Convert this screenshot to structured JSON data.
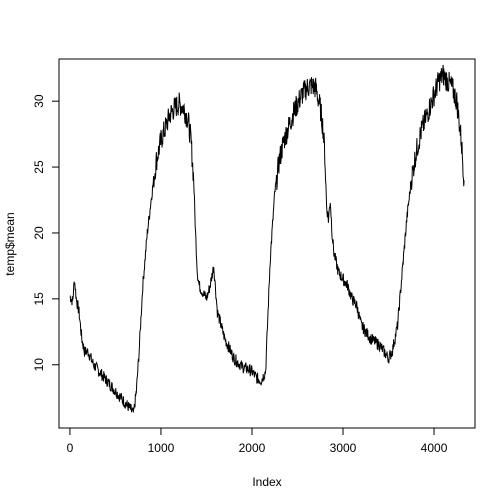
{
  "chart_data": {
    "type": "line",
    "title": "",
    "xlabel": "Index",
    "ylabel": "temp$mean",
    "xlim": [
      -120,
      4450
    ],
    "ylim": [
      5.2,
      33.2
    ],
    "xticks": [
      0,
      1000,
      2000,
      3000,
      4000
    ],
    "yticks": [
      10,
      15,
      20,
      25,
      30
    ],
    "xtick_labels": [
      "0",
      "1000",
      "2000",
      "3000",
      "4000"
    ],
    "ytick_labels": [
      "10",
      "15",
      "20",
      "25",
      "30"
    ],
    "grid": false,
    "line_color": "#000000",
    "series": [
      {
        "x": [
          0,
          30,
          50,
          70,
          100,
          130,
          160,
          200,
          260,
          320,
          380,
          440,
          500,
          560,
          620,
          680,
          700,
          730,
          760,
          800,
          850,
          900,
          950,
          1000,
          1050,
          1100,
          1150,
          1200,
          1250,
          1300,
          1330,
          1360,
          1380,
          1400,
          1420,
          1460,
          1500,
          1540,
          1580,
          1620,
          1700,
          1800,
          1900,
          1950,
          2000,
          2050,
          2100,
          2150,
          2200,
          2250,
          2300,
          2350,
          2400,
          2450,
          2500,
          2550,
          2600,
          2650,
          2700,
          2750,
          2780,
          2800,
          2820,
          2840,
          2860,
          2880,
          2900,
          2950,
          3000,
          3050,
          3100,
          3150,
          3200,
          3300,
          3400,
          3500,
          3540,
          3600,
          3650,
          3700,
          3750,
          3800,
          3850,
          3900,
          3950,
          4000,
          4050,
          4100,
          4150,
          4200,
          4250,
          4300,
          4330
        ],
        "y": [
          15.2,
          14.8,
          16.5,
          15.0,
          14.0,
          12.0,
          11.0,
          11.0,
          10.0,
          9.5,
          9.0,
          8.5,
          8.0,
          7.5,
          7.0,
          6.5,
          6.3,
          8.0,
          11.0,
          16.0,
          20.0,
          23.0,
          25.5,
          27.0,
          28.0,
          29.0,
          29.5,
          29.8,
          29.5,
          28.5,
          27.0,
          24.0,
          20.0,
          17.0,
          16.0,
          15.5,
          15.0,
          16.0,
          17.5,
          14.0,
          12.0,
          10.5,
          9.8,
          9.7,
          9.5,
          9.0,
          8.8,
          9.5,
          18.0,
          23.0,
          25.5,
          27.0,
          28.0,
          29.0,
          29.8,
          30.5,
          31.0,
          31.2,
          31.0,
          29.5,
          28.0,
          26.0,
          22.0,
          21.0,
          22.5,
          20.0,
          18.5,
          17.0,
          16.5,
          16.0,
          15.0,
          14.5,
          13.0,
          12.0,
          11.5,
          10.5,
          11.0,
          13.0,
          17.0,
          21.0,
          24.0,
          26.0,
          27.5,
          28.5,
          29.5,
          30.5,
          31.5,
          32.0,
          31.5,
          31.0,
          30.0,
          27.0,
          24.0
        ]
      }
    ]
  }
}
